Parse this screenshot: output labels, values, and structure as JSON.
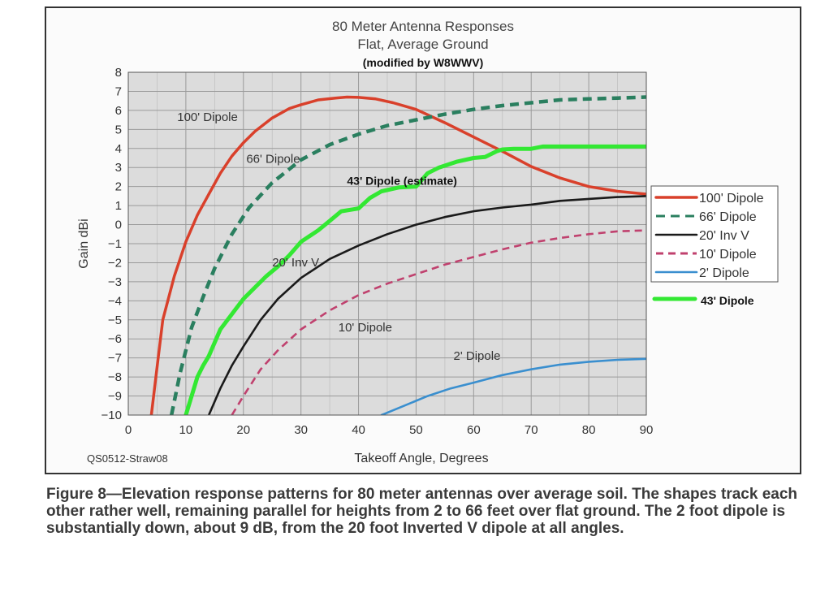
{
  "chart_data": {
    "type": "line",
    "title": "80 Meter Antenna Responses",
    "subtitle": "Flat, Average Ground",
    "modified_note": "(modified by W8WWV)",
    "xlabel": "Takeoff Angle, Degrees",
    "ylabel": "Gain dBi",
    "xlim": [
      0,
      90
    ],
    "ylim": [
      -10,
      8
    ],
    "xticks": [
      0,
      10,
      20,
      30,
      40,
      50,
      60,
      70,
      80,
      90
    ],
    "yticks": [
      8,
      7,
      6,
      5,
      4,
      3,
      2,
      1,
      0,
      -1,
      -2,
      -3,
      -4,
      -5,
      -6,
      -7,
      -8,
      -9,
      -10
    ],
    "grid": true,
    "legend_position": "right",
    "source_label": "QS0512-Straw08",
    "series": [
      {
        "name": "100' Dipole",
        "color": "#d9402b",
        "style": "solid",
        "x": [
          4,
          5,
          6,
          8,
          10,
          12,
          14,
          16,
          18,
          20,
          22,
          25,
          28,
          30,
          33,
          36,
          38,
          40,
          43,
          46,
          50,
          55,
          60,
          65,
          70,
          75,
          80,
          85,
          90
        ],
        "y": [
          -10,
          -7.5,
          -5,
          -2.7,
          -0.9,
          0.5,
          1.6,
          2.7,
          3.6,
          4.3,
          4.9,
          5.6,
          6.1,
          6.3,
          6.55,
          6.65,
          6.7,
          6.68,
          6.6,
          6.4,
          6.05,
          5.35,
          4.6,
          3.85,
          3.05,
          2.45,
          2.0,
          1.75,
          1.6
        ]
      },
      {
        "name": "66' Dipole",
        "color": "#2a7f5f",
        "style": "dashed",
        "x": [
          7.5,
          9,
          11,
          13,
          15,
          18,
          21,
          25,
          30,
          35,
          40,
          45,
          50,
          55,
          60,
          65,
          70,
          75,
          80,
          85,
          90
        ],
        "y": [
          -10,
          -7.8,
          -5.4,
          -3.8,
          -2.3,
          -0.5,
          0.9,
          2.2,
          3.4,
          4.2,
          4.75,
          5.2,
          5.5,
          5.8,
          6.05,
          6.25,
          6.4,
          6.55,
          6.6,
          6.65,
          6.7
        ]
      },
      {
        "name": "20' Inv V",
        "color": "#1a1a1a",
        "style": "solid",
        "x": [
          14,
          16,
          18,
          20,
          23,
          26,
          30,
          35,
          40,
          45,
          50,
          55,
          60,
          65,
          70,
          75,
          80,
          85,
          90
        ],
        "y": [
          -10,
          -8.6,
          -7.4,
          -6.4,
          -5.0,
          -3.9,
          -2.8,
          -1.8,
          -1.1,
          -0.5,
          0.0,
          0.4,
          0.7,
          0.9,
          1.05,
          1.25,
          1.35,
          1.45,
          1.5
        ]
      },
      {
        "name": "10' Dipole",
        "color": "#c0416e",
        "style": "dashed",
        "x": [
          18,
          20,
          23,
          26,
          30,
          35,
          40,
          45,
          50,
          55,
          60,
          65,
          70,
          75,
          80,
          85,
          90
        ],
        "y": [
          -10,
          -9.0,
          -7.6,
          -6.6,
          -5.5,
          -4.5,
          -3.7,
          -3.1,
          -2.6,
          -2.1,
          -1.7,
          -1.3,
          -0.95,
          -0.7,
          -0.5,
          -0.35,
          -0.3
        ]
      },
      {
        "name": "2' Dipole",
        "color": "#3a8fcf",
        "style": "solid",
        "x": [
          44,
          48,
          52,
          56,
          60,
          65,
          70,
          75,
          80,
          85,
          90
        ],
        "y": [
          -10,
          -9.5,
          -9.0,
          -8.6,
          -8.3,
          -7.9,
          -7.6,
          -7.35,
          -7.2,
          -7.1,
          -7.05
        ]
      },
      {
        "name": "43' Dipole",
        "color": "#33e833",
        "style": "solid-bold",
        "x": [
          10,
          11,
          12,
          13,
          14,
          15,
          16,
          18,
          20,
          22,
          24,
          26,
          28,
          30,
          33,
          35,
          37,
          39,
          40,
          42,
          44,
          47,
          50,
          52,
          54,
          57,
          60,
          62,
          64,
          65,
          67,
          70,
          72,
          75,
          80,
          85,
          90
        ],
        "y": [
          -10,
          -9,
          -8,
          -7.4,
          -6.9,
          -6.2,
          -5.5,
          -4.7,
          -3.9,
          -3.3,
          -2.7,
          -2.2,
          -1.6,
          -0.9,
          -0.3,
          0.2,
          0.7,
          0.8,
          0.85,
          1.4,
          1.75,
          1.95,
          2.0,
          2.7,
          3.0,
          3.3,
          3.5,
          3.55,
          3.85,
          3.95,
          3.98,
          3.98,
          4.1,
          4.1,
          4.1,
          4.1,
          4.1
        ]
      }
    ],
    "curve_labels": [
      {
        "text": "100' Dipole",
        "x": 8.5,
        "y": 5.45
      },
      {
        "text": "66' Dipole",
        "x": 20.5,
        "y": 3.25
      },
      {
        "text": "43' Dipole (estimate)",
        "x": 38,
        "y": 2.1
      },
      {
        "text": "20' Inv V",
        "x": 25,
        "y": -2.2
      },
      {
        "text": "10' Dipole",
        "x": 36.5,
        "y": -5.6
      },
      {
        "text": "2' Dipole",
        "x": 56.5,
        "y": -7.1
      }
    ],
    "legend_main": [
      "100' Dipole",
      "66' Dipole",
      "20' Inv V",
      "10' Dipole",
      "2' Dipole"
    ],
    "legend_extra": "43' Dipole"
  },
  "caption": "Figure 8—Elevation response patterns for 80 meter antennas over average soil. The shapes track each other rather well, remaining parallel for heights from 2 to 66 feet over flat ground. The 2 foot dipole is substantially down, about 9 dB, from the 20 foot Inverted V dipole at all angles."
}
